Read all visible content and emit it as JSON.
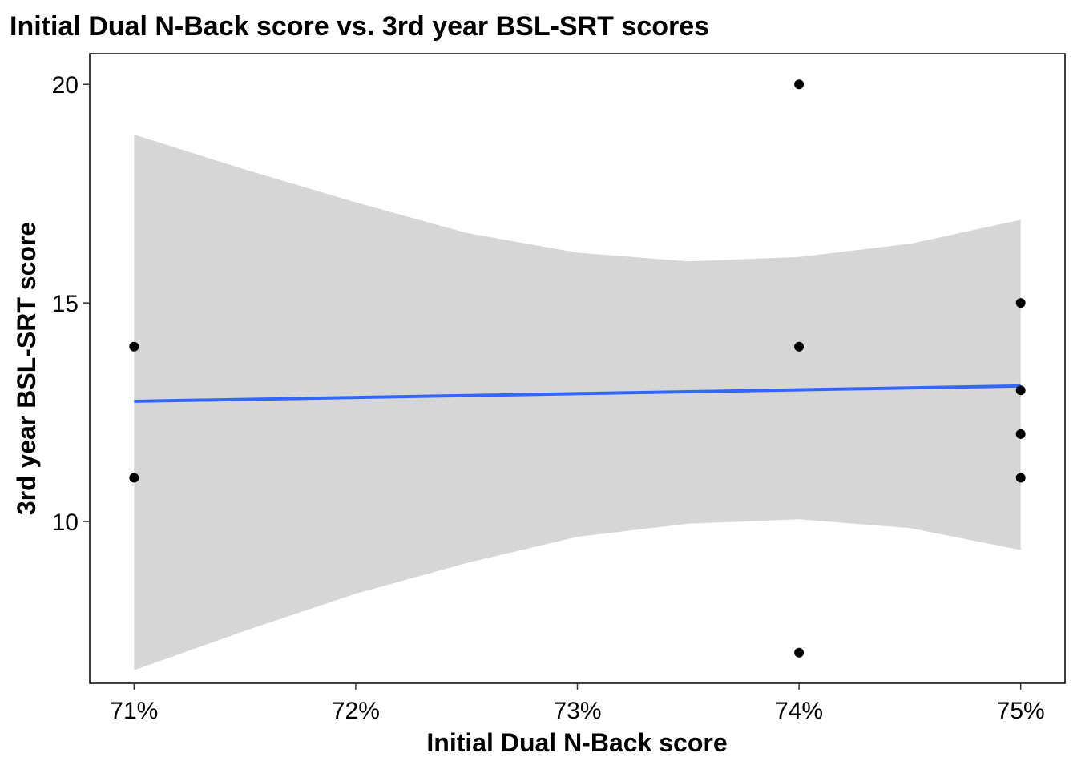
{
  "chart_data": {
    "type": "scatter",
    "title": "Initial Dual N-Back score vs. 3rd year BSL-SRT scores",
    "xlabel": "Initial Dual N-Back score",
    "ylabel": "3rd year BSL-SRT score",
    "xlim": [
      70.8,
      75.2
    ],
    "ylim": [
      6.3,
      20.7
    ],
    "x_ticks": [
      71,
      72,
      73,
      74,
      75
    ],
    "x_tick_labels": [
      "71%",
      "72%",
      "73%",
      "74%",
      "75%"
    ],
    "y_ticks": [
      10,
      15,
      20
    ],
    "y_tick_labels": [
      "10",
      "15",
      "20"
    ],
    "grid": false,
    "points": [
      {
        "x": 71,
        "y": 14
      },
      {
        "x": 71,
        "y": 11
      },
      {
        "x": 74,
        "y": 20
      },
      {
        "x": 74,
        "y": 14
      },
      {
        "x": 74,
        "y": 7
      },
      {
        "x": 75,
        "y": 15
      },
      {
        "x": 75,
        "y": 13
      },
      {
        "x": 75,
        "y": 12
      },
      {
        "x": 75,
        "y": 11
      }
    ],
    "fit_line": {
      "x": [
        71,
        75
      ],
      "y": [
        12.75,
        13.1
      ],
      "color": "#3366FF"
    },
    "confidence_band": {
      "x": [
        71,
        71.5,
        72,
        72.5,
        73,
        73.5,
        74,
        74.5,
        75
      ],
      "upper": [
        18.85,
        18.05,
        17.3,
        16.6,
        16.15,
        15.95,
        16.05,
        16.35,
        16.9
      ],
      "lower": [
        6.6,
        7.5,
        8.35,
        9.05,
        9.65,
        9.95,
        10.05,
        9.85,
        9.35
      ],
      "color": "#D6D6D6"
    },
    "point_color": "#000000"
  }
}
